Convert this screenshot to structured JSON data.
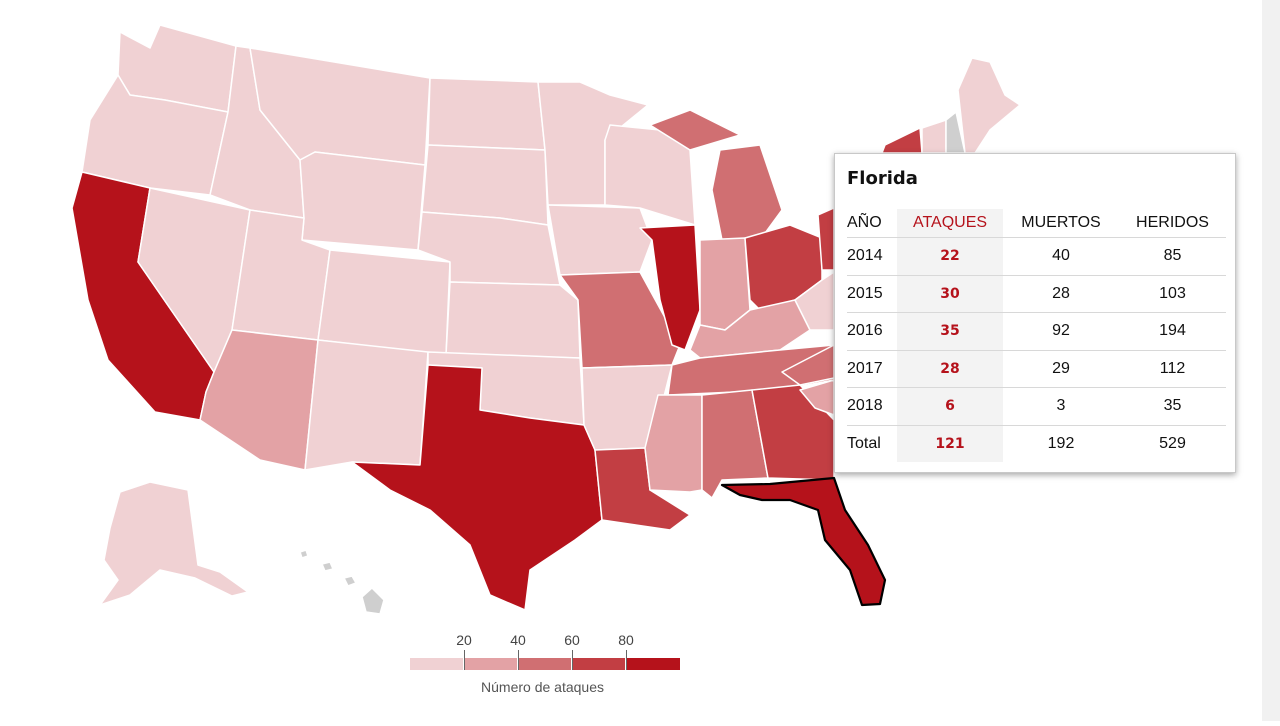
{
  "colors": {
    "level1": "#f0d1d3",
    "level2": "#e3a2a5",
    "level3": "#d06f72",
    "level4": "#c23e43",
    "level5": "#b5121b",
    "nodata": "#cfcfcf",
    "accent": "#b5121b"
  },
  "tooltip": {
    "state": "Florida",
    "headers": [
      "AÑO",
      "ATAQUES",
      "MUERTOS",
      "HERIDOS"
    ],
    "rows": [
      {
        "year": "2014",
        "attacks": "22",
        "deaths": "40",
        "injured": "85"
      },
      {
        "year": "2015",
        "attacks": "30",
        "deaths": "28",
        "injured": "103"
      },
      {
        "year": "2016",
        "attacks": "35",
        "deaths": "92",
        "injured": "194"
      },
      {
        "year": "2017",
        "attacks": "28",
        "deaths": "29",
        "injured": "112"
      },
      {
        "year": "2018",
        "attacks": "6",
        "deaths": "3",
        "injured": "35"
      },
      {
        "year": "Total",
        "attacks": "121",
        "deaths": "192",
        "injured": "529"
      }
    ]
  },
  "legend": {
    "ticks": [
      "20",
      "40",
      "60",
      "80"
    ],
    "title": "Número de ataques"
  }
}
